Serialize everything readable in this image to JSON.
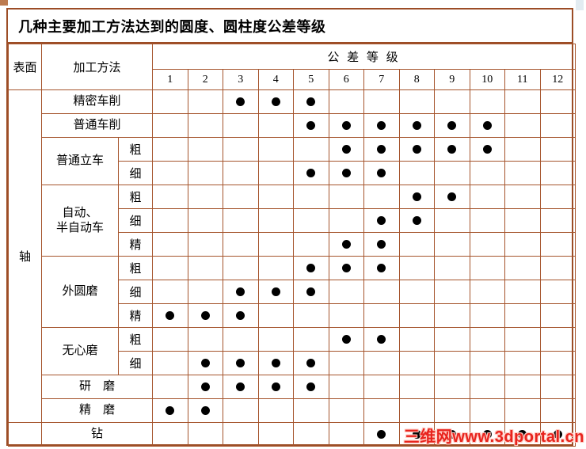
{
  "title": "几种主要加工方法达到的圆度、圆柱度公差等级",
  "table": {
    "header": {
      "surface": "表面",
      "method": "加工方法",
      "grade_title": "公 差 等 级",
      "grades": [
        "1",
        "2",
        "3",
        "4",
        "5",
        "6",
        "7",
        "8",
        "9",
        "10",
        "11",
        "12"
      ]
    },
    "surface_groups": [
      {
        "label": "轴",
        "rowspan": 14
      },
      {
        "label": "",
        "rowspan": 1
      }
    ],
    "rows": [
      {
        "method": "精密车削",
        "sub": null,
        "grades": [
          3,
          4,
          5
        ]
      },
      {
        "method": "普通车削",
        "sub": null,
        "grades": [
          5,
          6,
          7,
          8,
          9,
          10
        ]
      },
      {
        "method": "普通立车",
        "sub": "粗",
        "grades": [
          6,
          7,
          8,
          9,
          10
        ]
      },
      {
        "method": null,
        "sub": "细",
        "grades": [
          5,
          6,
          7
        ]
      },
      {
        "method": "自动、\n半自动车",
        "sub": "粗",
        "grades": [
          8,
          9
        ]
      },
      {
        "method": null,
        "sub": "细",
        "grades": [
          7,
          8
        ]
      },
      {
        "method": null,
        "sub": "精",
        "grades": [
          6,
          7
        ]
      },
      {
        "method": "外圆磨",
        "sub": "粗",
        "grades": [
          5,
          6,
          7
        ]
      },
      {
        "method": null,
        "sub": "细",
        "grades": [
          3,
          4,
          5
        ]
      },
      {
        "method": null,
        "sub": "精",
        "grades": [
          1,
          2,
          3
        ]
      },
      {
        "method": "无心磨",
        "sub": "粗",
        "grades": [
          6,
          7
        ]
      },
      {
        "method": null,
        "sub": "细",
        "grades": [
          2,
          3,
          4,
          5
        ]
      },
      {
        "method": "研　磨",
        "sub": null,
        "grades": [
          2,
          3,
          4,
          5
        ]
      },
      {
        "method": "精　磨",
        "sub": null,
        "grades": [
          1,
          2
        ]
      },
      {
        "method": "钻",
        "sub": null,
        "grades": [
          7,
          8,
          9,
          10,
          11,
          12
        ]
      }
    ]
  },
  "watermark": "三维网www.3dportal.cn",
  "colors": {
    "border": "#9c4d26",
    "grid": "#a5542c",
    "dot": "#000000",
    "watermark": "#e8231d",
    "title_text": "#000000"
  }
}
